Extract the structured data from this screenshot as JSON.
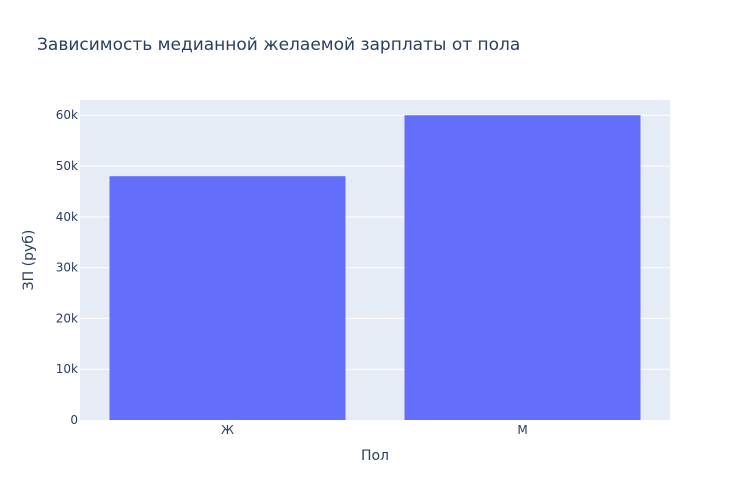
{
  "chart_data": {
    "type": "bar",
    "title": "Зависимость медианной желаемой зарплаты от пола",
    "xlabel": "Пол",
    "ylabel": "ЗП (руб)",
    "categories": [
      "Ж",
      "М"
    ],
    "values": [
      48000,
      60000
    ],
    "ylim": [
      0,
      63000
    ],
    "yticks": [
      0,
      10000,
      20000,
      30000,
      40000,
      50000,
      60000
    ],
    "ytick_labels": [
      "0",
      "10k",
      "20k",
      "30k",
      "40k",
      "50k",
      "60k"
    ],
    "grid": true,
    "colors": {
      "bar": "#636efa",
      "plot_bg": "#e5ecf6",
      "grid": "#ffffff",
      "text": "#2a3f5f"
    }
  }
}
